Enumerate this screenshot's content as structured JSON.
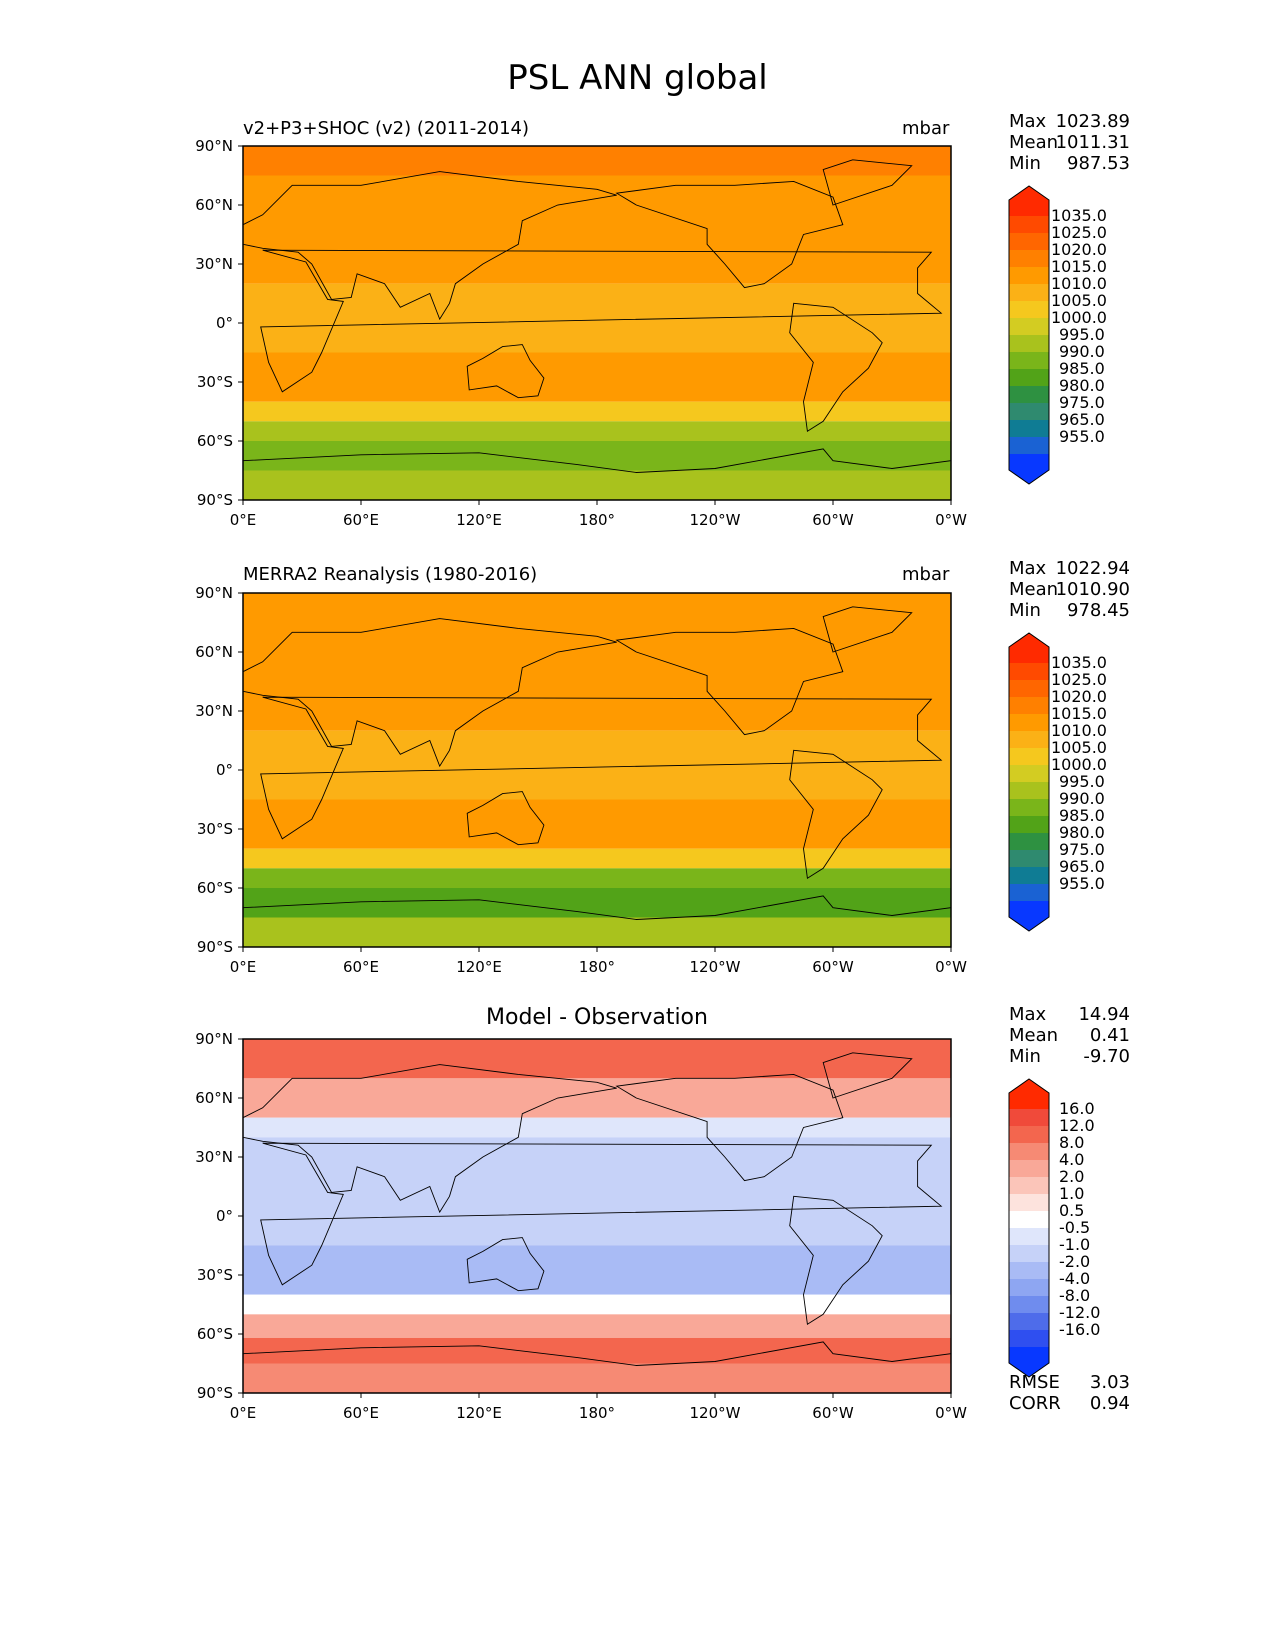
{
  "title": "PSL ANN global",
  "x_ticks": [
    "0°E",
    "60°E",
    "120°E",
    "180°",
    "120°W",
    "60°W",
    "0°W"
  ],
  "y_ticks": [
    "90°N",
    "60°N",
    "30°N",
    "0°",
    "30°S",
    "60°S",
    "90°S"
  ],
  "panels": [
    {
      "label": "v2+P3+SHOC (v2) (2011-2014)",
      "units": "mbar",
      "stats": {
        "max_label": "Max",
        "max": "1023.89",
        "mean_label": "Mean",
        "mean": "1011.31",
        "min_label": "Min",
        "min": "987.53"
      }
    },
    {
      "label": "MERRA2 Reanalysis (1980-2016)",
      "units": "mbar",
      "stats": {
        "max_label": "Max",
        "max": "1022.94",
        "mean_label": "Mean",
        "mean": "1010.90",
        "min_label": "Min",
        "min": "978.45"
      }
    },
    {
      "label": "Model - Observation",
      "units": "",
      "stats": {
        "max_label": "Max",
        "max": "14.94",
        "mean_label": "Mean",
        "mean": "0.41",
        "min_label": "Min",
        "min": "-9.70"
      },
      "extra": {
        "rmse_label": "RMSE",
        "rmse": "3.03",
        "corr_label": "CORR",
        "corr": "0.94"
      }
    }
  ],
  "colorbar_levels": [
    "1035.0",
    "1025.0",
    "1020.0",
    "1015.0",
    "1010.0",
    "1005.0",
    "1000.0",
    "995.0",
    "990.0",
    "985.0",
    "980.0",
    "975.0",
    "965.0",
    "955.0"
  ],
  "colorbar_colors": [
    "#ff2a00",
    "#ff4a00",
    "#ff6600",
    "#ff8000",
    "#ff9a00",
    "#fbb116",
    "#f5c81e",
    "#d3cc22",
    "#a9c21d",
    "#7ab51a",
    "#52a318",
    "#2e9141",
    "#2f8a6f",
    "#0f7c94",
    "#1a62d3",
    "#0838ff"
  ],
  "diff_levels": [
    "16.0",
    "12.0",
    "8.0",
    "4.0",
    "2.0",
    "1.0",
    "0.5",
    "-0.5",
    "-1.0",
    "-2.0",
    "-4.0",
    "-8.0",
    "-12.0",
    "-16.0"
  ],
  "diff_colors": [
    "#ff2a00",
    "#f04a3a",
    "#f3664e",
    "#f68a74",
    "#f9a898",
    "#fbc5b9",
    "#fde3dd",
    "#ffffff",
    "#dfe6fb",
    "#c6d2f8",
    "#a9bbf5",
    "#8ea6f2",
    "#6f8cee",
    "#4e6cea",
    "#2f4ff0",
    "#0838ff"
  ]
}
